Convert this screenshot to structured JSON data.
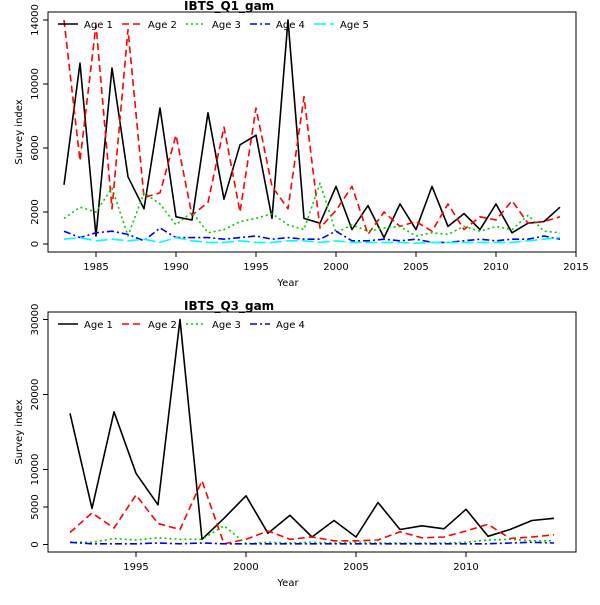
{
  "chart_data": [
    {
      "type": "line",
      "title": "IBTS_Q1_gam",
      "xlabel": "Year",
      "ylabel": "Survey index",
      "xlim": [
        1982,
        2015
      ],
      "ylim": [
        -500,
        14500
      ],
      "xticks": [
        1985,
        1990,
        1995,
        2000,
        2005,
        2010,
        2015
      ],
      "yticks": [
        0,
        2000,
        6000,
        10000,
        14000
      ],
      "legend_position": "top",
      "x": [
        1983,
        1984,
        1985,
        1986,
        1987,
        1988,
        1989,
        1990,
        1991,
        1992,
        1993,
        1994,
        1995,
        1996,
        1997,
        1998,
        1999,
        2000,
        2001,
        2002,
        2003,
        2004,
        2005,
        2006,
        2007,
        2008,
        2009,
        2010,
        2011,
        2012,
        2013,
        2014
      ],
      "series": [
        {
          "name": "Age 1",
          "color": "#000000",
          "dash": "",
          "values": [
            3700,
            11300,
            500,
            11000,
            4200,
            2200,
            8500,
            1700,
            1500,
            8200,
            2800,
            6200,
            6800,
            1600,
            14000,
            1600,
            1300,
            3600,
            900,
            2400,
            400,
            2500,
            900,
            3600,
            1100,
            1900,
            900,
            2500,
            700,
            1300,
            1400,
            2300
          ]
        },
        {
          "name": "Age 2",
          "color": "#ff0000",
          "dash": "7,4",
          "values": [
            14000,
            5200,
            13700,
            2200,
            13400,
            2900,
            3200,
            6800,
            1800,
            2600,
            7300,
            2000,
            8500,
            3600,
            2200,
            9200,
            1000,
            2100,
            3600,
            600,
            2000,
            1100,
            1400,
            800,
            2500,
            900,
            1700,
            1500,
            2700,
            1300,
            1400,
            1700
          ]
        },
        {
          "name": "Age 3",
          "color": "#00cc00",
          "dash": "2,3",
          "values": [
            1600,
            2300,
            2000,
            3500,
            500,
            3200,
            2500,
            1200,
            2000,
            700,
            900,
            1400,
            1600,
            1900,
            1200,
            900,
            3800,
            700,
            1200,
            800,
            1000,
            1100,
            500,
            700,
            600,
            1100,
            800,
            1100,
            900,
            1800,
            800,
            700
          ]
        },
        {
          "name": "Age 4",
          "color": "#0000ff",
          "dash": "7,3,2,3",
          "values": [
            800,
            400,
            700,
            800,
            600,
            200,
            1000,
            400,
            400,
            400,
            300,
            400,
            500,
            300,
            400,
            300,
            300,
            800,
            200,
            200,
            300,
            200,
            300,
            100,
            100,
            200,
            300,
            200,
            300,
            300,
            500,
            300
          ]
        },
        {
          "name": "Age 5",
          "color": "#00ffff",
          "dash": "12,4",
          "values": [
            300,
            400,
            200,
            300,
            200,
            300,
            100,
            400,
            200,
            100,
            100,
            200,
            100,
            100,
            200,
            200,
            100,
            200,
            100,
            100,
            100,
            100,
            50,
            100,
            100,
            100,
            100,
            100,
            100,
            200,
            300,
            400
          ]
        }
      ]
    },
    {
      "type": "line",
      "title": "IBTS_Q3_gam",
      "xlabel": "Year",
      "ylabel": "Survey index",
      "xlim": [
        1991,
        2015
      ],
      "ylim": [
        -1000,
        31000
      ],
      "xticks": [
        1995,
        2000,
        2005,
        2010
      ],
      "yticks": [
        0,
        5000,
        10000,
        20000,
        30000
      ],
      "legend_position": "top",
      "x": [
        1992,
        1993,
        1994,
        1995,
        1996,
        1997,
        1998,
        1999,
        2000,
        2001,
        2002,
        2003,
        2004,
        2005,
        2006,
        2007,
        2008,
        2009,
        2010,
        2011,
        2012,
        2013,
        2014
      ],
      "series": [
        {
          "name": "Age 1",
          "color": "#000000",
          "dash": "",
          "values": [
            17500,
            4800,
            17700,
            9500,
            5300,
            30000,
            700,
            3500,
            6500,
            1500,
            3900,
            1000,
            3200,
            1000,
            5600,
            2000,
            2500,
            2100,
            4700,
            1100,
            2000,
            3200,
            3500
          ]
        },
        {
          "name": "Age 2",
          "color": "#ff0000",
          "dash": "7,4",
          "values": [
            1600,
            4200,
            2200,
            6600,
            2800,
            2000,
            8500,
            100,
            700,
            1800,
            700,
            1000,
            500,
            500,
            600,
            1700,
            900,
            1000,
            1800,
            2700,
            800,
            1000,
            1300
          ]
        },
        {
          "name": "Age 3",
          "color": "#00cc00",
          "dash": "2,3",
          "values": [
            300,
            300,
            800,
            600,
            900,
            700,
            700,
            2500,
            100,
            300,
            200,
            300,
            200,
            300,
            200,
            200,
            200,
            200,
            300,
            600,
            700,
            500,
            500
          ]
        },
        {
          "name": "Age 4",
          "color": "#0000ff",
          "dash": "7,3,2,3",
          "values": [
            300,
            100,
            100,
            100,
            200,
            100,
            200,
            100,
            100,
            100,
            100,
            100,
            100,
            100,
            100,
            100,
            100,
            100,
            100,
            100,
            200,
            300,
            200
          ]
        }
      ]
    }
  ]
}
